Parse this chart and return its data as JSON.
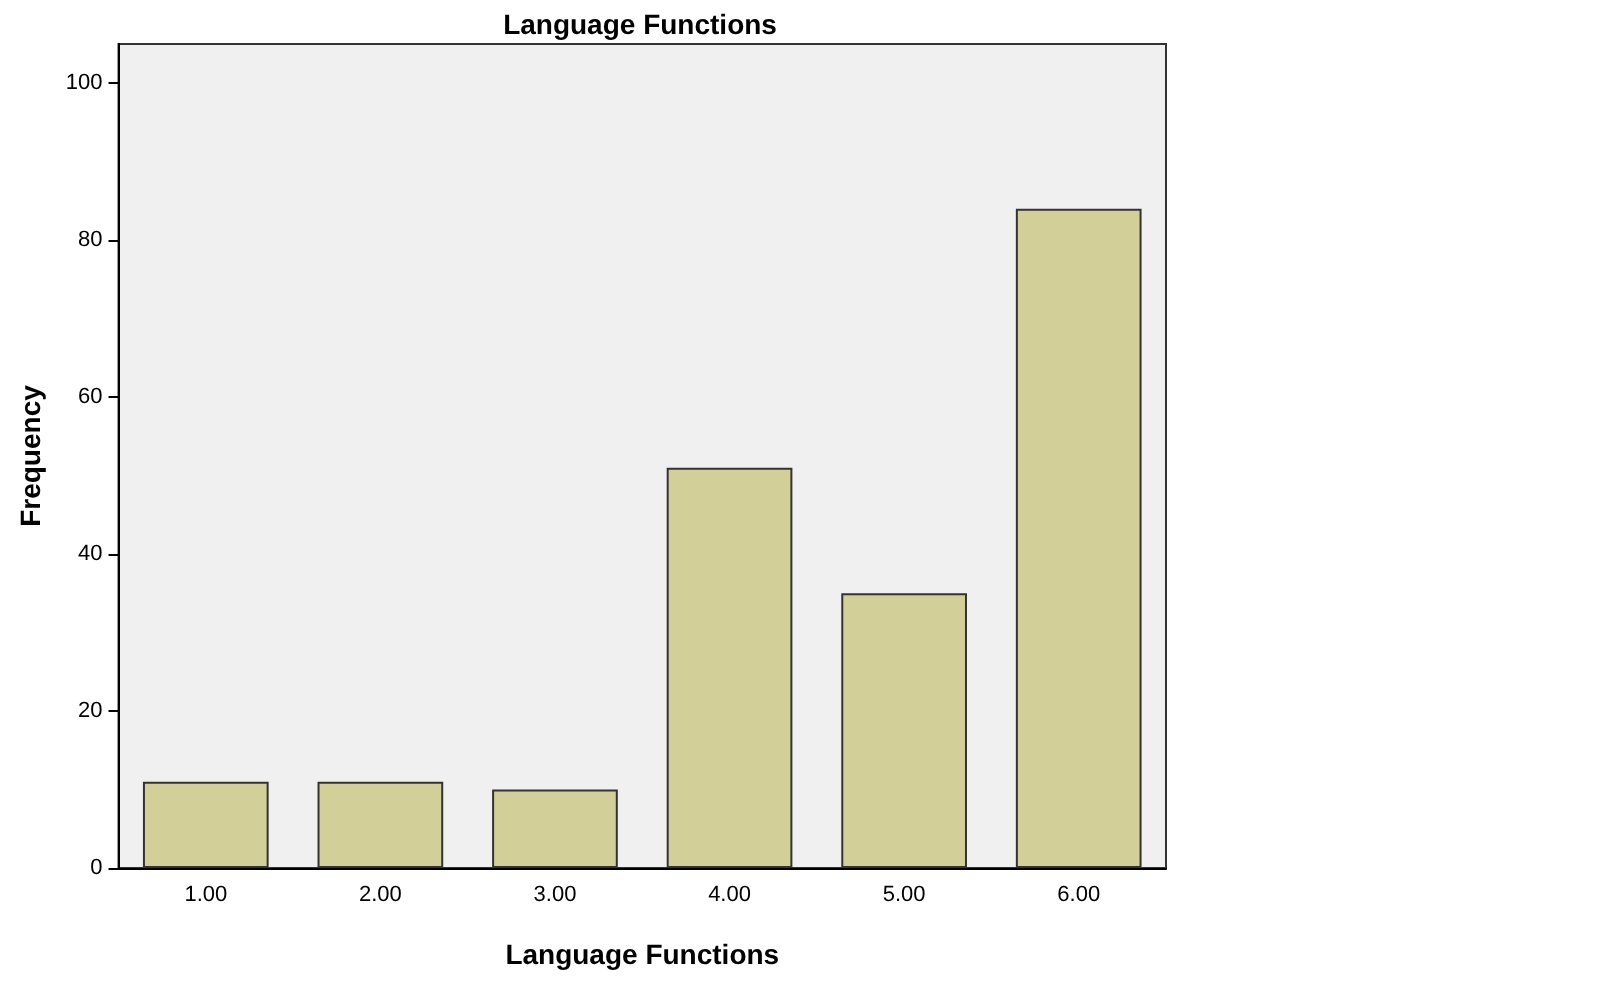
{
  "chart_data": {
    "type": "bar",
    "title": "Language Functions",
    "xlabel": "Language Functions",
    "ylabel": "Frequency",
    "categories": [
      "1.00",
      "2.00",
      "3.00",
      "4.00",
      "5.00",
      "6.00"
    ],
    "values": [
      11,
      11,
      10,
      51,
      35,
      84
    ],
    "color": "#d3cf98",
    "ylim": [
      0,
      105
    ],
    "yticks": [
      0,
      20,
      40,
      60,
      80,
      100
    ],
    "grid": false
  }
}
